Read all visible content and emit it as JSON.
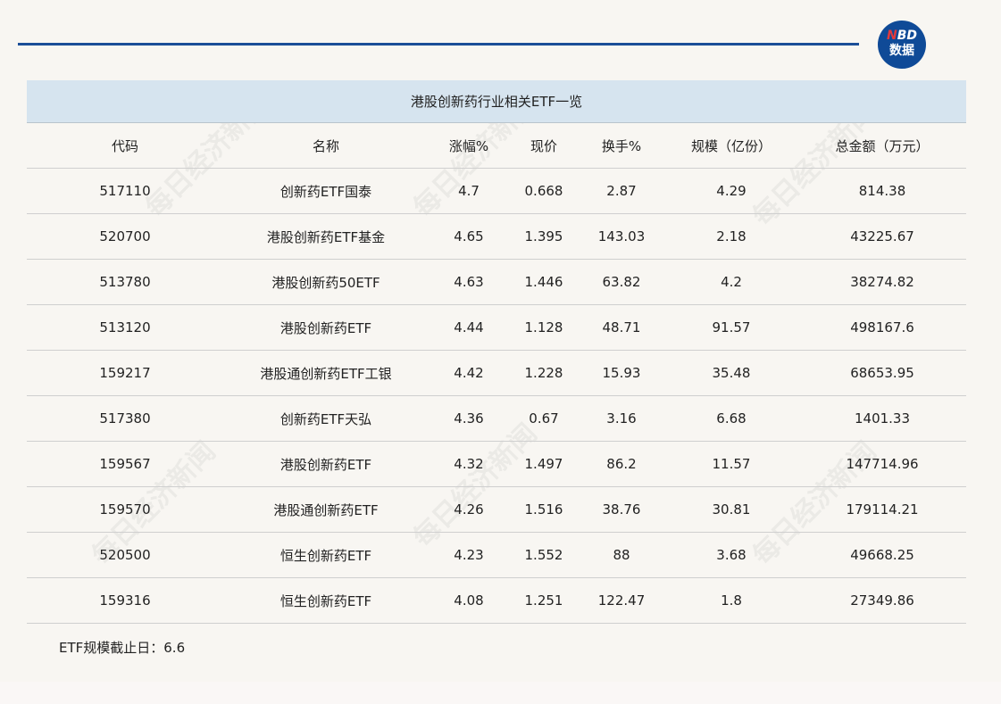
{
  "logo": {
    "line1_n": "N",
    "line1_rest": "BD",
    "line2": "数据"
  },
  "watermark": "每日经济新闻",
  "table": {
    "title": "港股创新药行业相关ETF一览",
    "headers": [
      "代码",
      "名称",
      "涨幅%",
      "现价",
      "换手%",
      "规模（亿份）",
      "总金额（万元）"
    ],
    "rows": [
      [
        "517110",
        "创新药ETF国泰",
        "4.7",
        "0.668",
        "2.87",
        "4.29",
        "814.38"
      ],
      [
        "520700",
        "港股创新药ETF基金",
        "4.65",
        "1.395",
        "143.03",
        "2.18",
        "43225.67"
      ],
      [
        "513780",
        "港股创新药50ETF",
        "4.63",
        "1.446",
        "63.82",
        "4.2",
        "38274.82"
      ],
      [
        "513120",
        "港股创新药ETF",
        "4.44",
        "1.128",
        "48.71",
        "91.57",
        "498167.6"
      ],
      [
        "159217",
        "港股通创新药ETF工银",
        "4.42",
        "1.228",
        "15.93",
        "35.48",
        "68653.95"
      ],
      [
        "517380",
        "创新药ETF天弘",
        "4.36",
        "0.67",
        "3.16",
        "6.68",
        "1401.33"
      ],
      [
        "159567",
        "港股创新药ETF",
        "4.32",
        "1.497",
        "86.2",
        "11.57",
        "147714.96"
      ],
      [
        "159570",
        "港股通创新药ETF",
        "4.26",
        "1.516",
        "38.76",
        "30.81",
        "179114.21"
      ],
      [
        "520500",
        "恒生创新药ETF",
        "4.23",
        "1.552",
        "88",
        "3.68",
        "49668.25"
      ],
      [
        "159316",
        "恒生创新药ETF",
        "4.08",
        "1.251",
        "122.47",
        "1.8",
        "27349.86"
      ]
    ]
  },
  "footnote": "ETF规模截止日：6.6",
  "colors": {
    "accent": "#1b4e98",
    "title_band": "#d6e4ef",
    "background": "#f8f6f2"
  }
}
